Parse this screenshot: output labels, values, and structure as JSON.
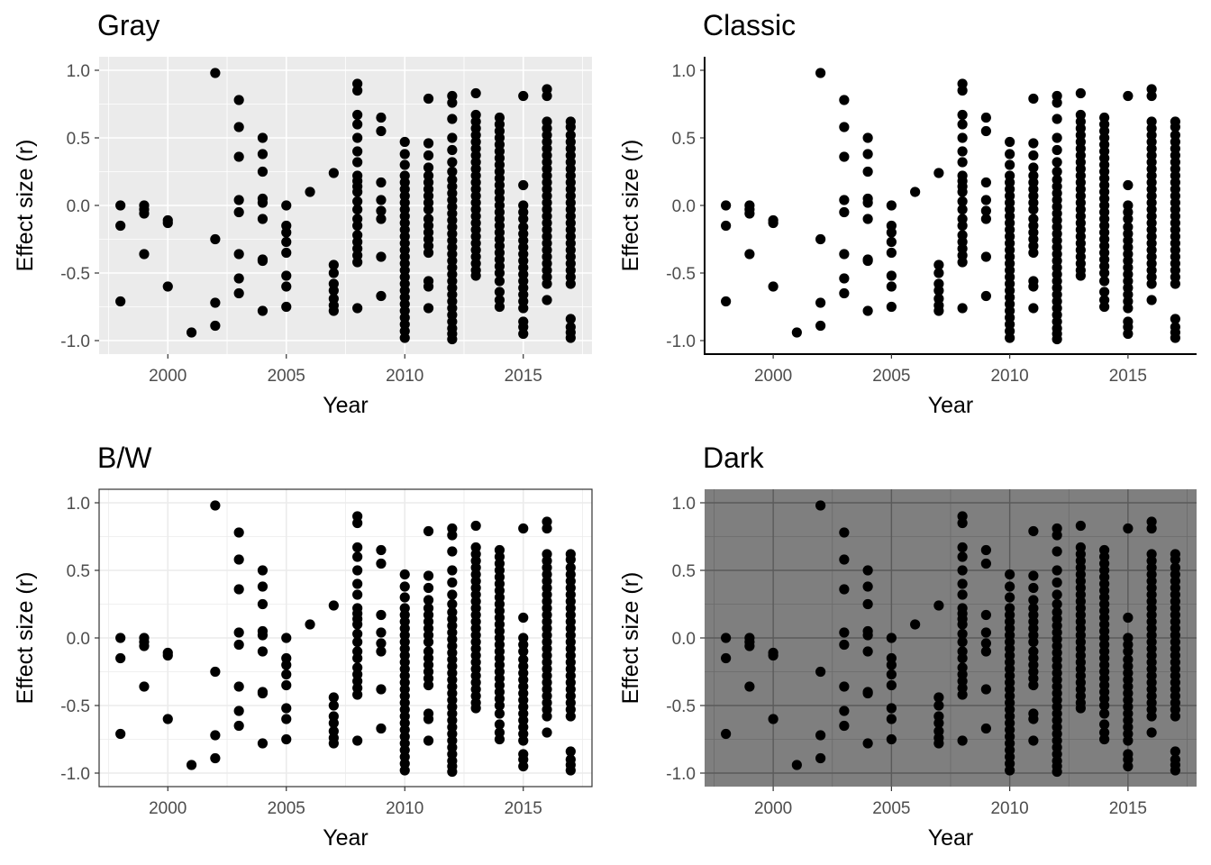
{
  "figure": {
    "panels": [
      "Gray",
      "Classic",
      "B/W",
      "Dark"
    ]
  },
  "chart_data": [
    {
      "type": "scatter",
      "title": "Gray",
      "theme": "gray",
      "xlabel": "Year",
      "ylabel": "Effect size (r)",
      "xlim": [
        1997.1,
        2017.9
      ],
      "ylim": [
        -1.1,
        1.1
      ],
      "xticks": [
        2000,
        2005,
        2010,
        2015
      ],
      "xtick_labels": [
        "2000",
        "2005",
        "2010",
        "2015"
      ],
      "yticks": [
        -1.0,
        -0.5,
        0.0,
        0.5,
        1.0
      ],
      "ytick_labels": [
        "-1.0",
        "-0.5",
        "0.0",
        "0.5",
        "1.0"
      ],
      "grid": true,
      "series": [
        {
          "points_ref": "shared_points"
        }
      ]
    },
    {
      "type": "scatter",
      "title": "Classic",
      "theme": "classic",
      "xlabel": "Year",
      "ylabel": "Effect size (r)",
      "xlim": [
        1997.1,
        2017.9
      ],
      "ylim": [
        -1.1,
        1.1
      ],
      "xticks": [
        2000,
        2005,
        2010,
        2015
      ],
      "xtick_labels": [
        "2000",
        "2005",
        "2010",
        "2015"
      ],
      "yticks": [
        -1.0,
        -0.5,
        0.0,
        0.5,
        1.0
      ],
      "ytick_labels": [
        "-1.0",
        "-0.5",
        "0.0",
        "0.5",
        "1.0"
      ],
      "grid": false,
      "series": [
        {
          "points_ref": "shared_points"
        }
      ]
    },
    {
      "type": "scatter",
      "title": "B/W",
      "theme": "bw",
      "xlabel": "Year",
      "ylabel": "Effect size (r)",
      "xlim": [
        1997.1,
        2017.9
      ],
      "ylim": [
        -1.1,
        1.1
      ],
      "xticks": [
        2000,
        2005,
        2010,
        2015
      ],
      "xtick_labels": [
        "2000",
        "2005",
        "2010",
        "2015"
      ],
      "yticks": [
        -1.0,
        -0.5,
        0.0,
        0.5,
        1.0
      ],
      "ytick_labels": [
        "-1.0",
        "-0.5",
        "0.0",
        "0.5",
        "1.0"
      ],
      "grid": true,
      "series": [
        {
          "points_ref": "shared_points"
        }
      ]
    },
    {
      "type": "scatter",
      "title": "Dark",
      "theme": "dark",
      "xlabel": "Year",
      "ylabel": "Effect size (r)",
      "xlim": [
        1997.1,
        2017.9
      ],
      "ylim": [
        -1.1,
        1.1
      ],
      "xticks": [
        2000,
        2005,
        2010,
        2015
      ],
      "xtick_labels": [
        "2000",
        "2005",
        "2010",
        "2015"
      ],
      "yticks": [
        -1.0,
        -0.5,
        0.0,
        0.5,
        1.0
      ],
      "ytick_labels": [
        "-1.0",
        "-0.5",
        "0.0",
        "0.5",
        "1.0"
      ],
      "grid": true,
      "series": [
        {
          "points_ref": "shared_points"
        }
      ]
    }
  ],
  "shared_points": [
    {
      "year": 1998,
      "r": [
        0.0,
        -0.15,
        -0.71
      ]
    },
    {
      "year": 1999,
      "r": [
        0.0,
        -0.03,
        -0.06,
        -0.36
      ]
    },
    {
      "year": 2000,
      "r": [
        -0.11,
        -0.13,
        -0.6
      ]
    },
    {
      "year": 2001,
      "r": [
        -0.94
      ]
    },
    {
      "year": 2002,
      "r": [
        0.98,
        -0.25,
        -0.72,
        -0.89
      ]
    },
    {
      "year": 2003,
      "r": [
        0.78,
        0.58,
        0.36,
        0.04,
        -0.05,
        -0.36,
        -0.54,
        -0.65
      ]
    },
    {
      "year": 2004,
      "r": [
        0.5,
        0.38,
        0.25,
        0.05,
        0.02,
        -0.1,
        -0.4,
        -0.41,
        -0.78
      ]
    },
    {
      "year": 2005,
      "r": [
        0.0,
        -0.15,
        -0.2,
        -0.27,
        -0.35,
        -0.52,
        -0.6,
        -0.75
      ]
    },
    {
      "year": 2006,
      "r": [
        0.1
      ]
    },
    {
      "year": 2007,
      "r": [
        0.24,
        -0.44,
        -0.5,
        -0.58,
        -0.63,
        -0.69,
        -0.74,
        -0.78
      ]
    },
    {
      "year": 2008,
      "r": [
        0.9,
        0.85,
        0.67,
        0.6,
        0.5,
        0.4,
        0.32,
        0.22,
        0.18,
        0.14,
        0.1,
        0.03,
        -0.03,
        -0.1,
        -0.15,
        -0.22,
        -0.27,
        -0.32,
        -0.37,
        -0.42,
        -0.76
      ]
    },
    {
      "year": 2009,
      "r": [
        0.65,
        0.55,
        0.17,
        0.04,
        -0.04,
        -0.1,
        -0.38,
        -0.67
      ]
    },
    {
      "year": 2010,
      "r": [
        0.47,
        0.38,
        0.3,
        0.22,
        0.17,
        0.12,
        0.07,
        0.02,
        -0.03,
        -0.08,
        -0.13,
        -0.18,
        -0.23,
        -0.28,
        -0.33,
        -0.38,
        -0.43,
        -0.48,
        -0.53,
        -0.58,
        -0.63,
        -0.68,
        -0.73,
        -0.78,
        -0.83,
        -0.88,
        -0.93,
        -0.98
      ]
    },
    {
      "year": 2011,
      "r": [
        0.79,
        0.46,
        0.37,
        0.28,
        0.22,
        0.17,
        0.12,
        0.07,
        0.02,
        -0.03,
        -0.1,
        -0.15,
        -0.2,
        -0.25,
        -0.3,
        -0.35,
        -0.56,
        -0.6,
        -0.76
      ]
    },
    {
      "year": 2012,
      "r": [
        0.81,
        0.76,
        0.64,
        0.5,
        0.41,
        0.32,
        0.25,
        0.19,
        0.14,
        0.09,
        0.04,
        -0.01,
        -0.06,
        -0.11,
        -0.16,
        -0.21,
        -0.26,
        -0.31,
        -0.36,
        -0.41,
        -0.46,
        -0.51,
        -0.56,
        -0.61,
        -0.66,
        -0.71,
        -0.76,
        -0.81,
        -0.86,
        -0.91,
        -0.95,
        -0.99
      ]
    },
    {
      "year": 2013,
      "r": [
        0.83,
        0.67,
        0.62,
        0.57,
        0.52,
        0.47,
        0.42,
        0.37,
        0.32,
        0.27,
        0.22,
        0.17,
        0.12,
        0.07,
        0.02,
        -0.03,
        -0.08,
        -0.13,
        -0.18,
        -0.23,
        -0.28,
        -0.33,
        -0.38,
        -0.43,
        -0.48,
        -0.52
      ]
    },
    {
      "year": 2014,
      "r": [
        0.65,
        0.6,
        0.55,
        0.5,
        0.45,
        0.4,
        0.35,
        0.3,
        0.25,
        0.2,
        0.15,
        0.1,
        0.05,
        0.0,
        -0.05,
        -0.1,
        -0.15,
        -0.2,
        -0.25,
        -0.3,
        -0.35,
        -0.4,
        -0.45,
        -0.5,
        -0.56,
        -0.64,
        -0.7,
        -0.75
      ]
    },
    {
      "year": 2015,
      "r": [
        0.81,
        0.15,
        0.0,
        -0.05,
        -0.1,
        -0.16,
        -0.21,
        -0.26,
        -0.31,
        -0.36,
        -0.41,
        -0.46,
        -0.51,
        -0.56,
        -0.61,
        -0.66,
        -0.71,
        -0.76,
        -0.86,
        -0.9,
        -0.95
      ]
    },
    {
      "year": 2016,
      "r": [
        0.86,
        0.81,
        0.62,
        0.57,
        0.52,
        0.47,
        0.42,
        0.37,
        0.32,
        0.27,
        0.22,
        0.17,
        0.12,
        0.07,
        0.02,
        -0.03,
        -0.08,
        -0.13,
        -0.18,
        -0.23,
        -0.28,
        -0.33,
        -0.38,
        -0.43,
        -0.48,
        -0.53,
        -0.58,
        -0.7
      ]
    },
    {
      "year": 2017,
      "r": [
        0.62,
        0.58,
        0.52,
        0.47,
        0.42,
        0.37,
        0.32,
        0.27,
        0.22,
        0.17,
        0.12,
        0.07,
        0.02,
        -0.03,
        -0.08,
        -0.13,
        -0.18,
        -0.23,
        -0.28,
        -0.33,
        -0.38,
        -0.43,
        -0.48,
        -0.53,
        -0.58,
        -0.84,
        -0.9,
        -0.94,
        -0.98
      ]
    }
  ]
}
